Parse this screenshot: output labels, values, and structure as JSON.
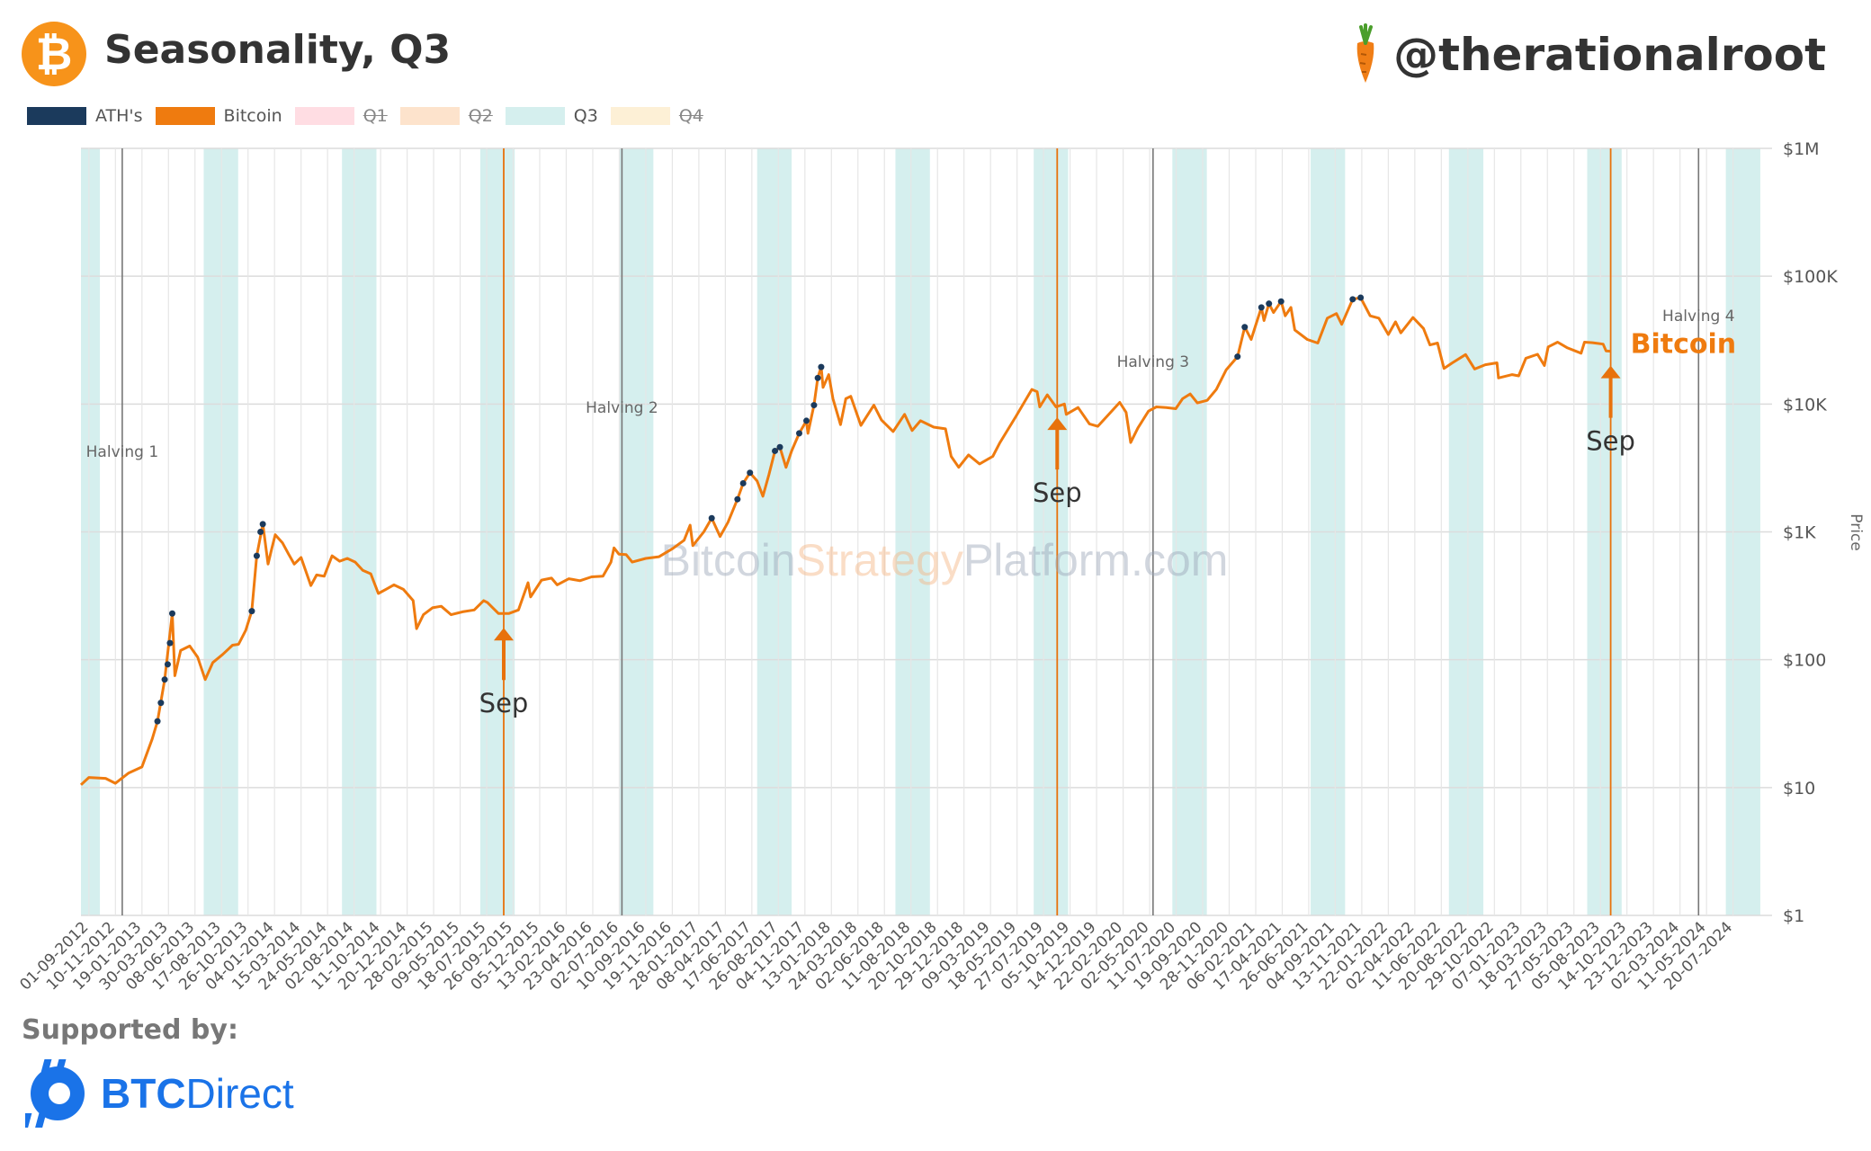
{
  "header": {
    "title": "Seasonality, Q3",
    "handle": "@therationalroot",
    "logo_glyph": "₿"
  },
  "legend": [
    {
      "label": "ATH's",
      "color": "#1b3a5c",
      "struck": false
    },
    {
      "label": "Bitcoin",
      "color": "#ef7b0f",
      "struck": false
    },
    {
      "label": "Q1",
      "color": "#ffdde3",
      "struck": true
    },
    {
      "label": "Q2",
      "color": "#fde3cc",
      "struck": true
    },
    {
      "label": "Q3",
      "color": "#d5efee",
      "struck": false
    },
    {
      "label": "Q4",
      "color": "#fdf0d6",
      "struck": true
    }
  ],
  "footer": {
    "supported_by": "Supported by:",
    "sponsor_prefix": "BTC",
    "sponsor_suffix": "Direct"
  },
  "colors": {
    "bitcoin": "#ef7b0f",
    "ath": "#1b3a5c",
    "q3_band": "#d5efee",
    "annotation": "#e8720c",
    "sponsor": "#1a73e8"
  },
  "chart_data": {
    "type": "line",
    "yscale": "log",
    "ylabel": "Price",
    "ylim": [
      1,
      1000000
    ],
    "xlim": [
      "2012-08-11",
      "2024-10-31"
    ],
    "y_ticks": [
      {
        "value": 1,
        "label": "$1"
      },
      {
        "value": 10,
        "label": "$10"
      },
      {
        "value": 100,
        "label": "$100"
      },
      {
        "value": 1000,
        "label": "$1K"
      },
      {
        "value": 10000,
        "label": "$10K"
      },
      {
        "value": 100000,
        "label": "$100K"
      },
      {
        "value": 1000000,
        "label": "$1M"
      }
    ],
    "x_ticks": [
      "01-09-2012",
      "10-11-2012",
      "19-01-2013",
      "30-03-2013",
      "08-06-2013",
      "17-08-2013",
      "26-10-2013",
      "04-01-2014",
      "15-03-2014",
      "24-05-2014",
      "02-08-2014",
      "11-10-2014",
      "20-12-2014",
      "28-02-2015",
      "09-05-2015",
      "18-07-2015",
      "26-09-2015",
      "05-12-2015",
      "13-02-2016",
      "23-04-2016",
      "02-07-2016",
      "10-09-2016",
      "19-11-2016",
      "28-01-2017",
      "08-04-2017",
      "17-06-2017",
      "26-08-2017",
      "04-11-2017",
      "13-01-2018",
      "24-03-2018",
      "02-06-2018",
      "11-08-2018",
      "20-10-2018",
      "29-12-2018",
      "09-03-2019",
      "18-05-2019",
      "27-07-2019",
      "05-10-2019",
      "14-12-2019",
      "22-02-2020",
      "02-05-2020",
      "11-07-2020",
      "19-09-2020",
      "28-11-2020",
      "06-02-2021",
      "17-04-2021",
      "26-06-2021",
      "04-09-2021",
      "13-11-2021",
      "22-01-2022",
      "02-04-2022",
      "11-06-2022",
      "20-08-2022",
      "29-10-2022",
      "07-01-2023",
      "18-03-2023",
      "27-05-2023",
      "05-08-2023",
      "14-10-2023",
      "23-12-2023",
      "02-03-2024",
      "11-05-2024",
      "20-07-2024"
    ],
    "q3_bands": [
      [
        "2012-08-11",
        "2012-09-30"
      ],
      [
        "2013-07-01",
        "2013-09-30"
      ],
      [
        "2014-07-01",
        "2014-09-30"
      ],
      [
        "2015-07-01",
        "2015-09-30"
      ],
      [
        "2016-07-01",
        "2016-09-30"
      ],
      [
        "2017-07-01",
        "2017-09-30"
      ],
      [
        "2018-07-01",
        "2018-09-30"
      ],
      [
        "2019-07-01",
        "2019-09-30"
      ],
      [
        "2020-07-01",
        "2020-09-30"
      ],
      [
        "2021-07-01",
        "2021-09-30"
      ],
      [
        "2022-07-01",
        "2022-09-30"
      ],
      [
        "2023-07-01",
        "2023-09-30"
      ],
      [
        "2024-07-01",
        "2024-09-30"
      ]
    ],
    "halvings": [
      {
        "label": "Halving 1",
        "date": "2012-11-28"
      },
      {
        "label": "Halving 2",
        "date": "2016-07-09"
      },
      {
        "label": "Halving 3",
        "date": "2020-05-11"
      },
      {
        "label": "Halving 4",
        "date": "2024-04-20"
      }
    ],
    "september_markers": [
      {
        "label": "Sep",
        "date": "2015-09-01",
        "price": 230
      },
      {
        "label": "Sep",
        "date": "2019-09-01",
        "price": 10200
      },
      {
        "label": "Sep",
        "date": "2023-09-01",
        "price": 25900
      }
    ],
    "series_label": "Bitcoin",
    "watermark": {
      "part1": "Bitcoin",
      "part2": "Strategy",
      "part3": "Platform.com"
    },
    "series": [
      {
        "name": "Bitcoin",
        "color": "#ef7b0f",
        "points": [
          [
            "2012-08-11",
            10.5
          ],
          [
            "2012-09-01",
            12
          ],
          [
            "2012-10-15",
            11.8
          ],
          [
            "2012-11-10",
            10.8
          ],
          [
            "2012-12-15",
            13
          ],
          [
            "2013-01-19",
            14.5
          ],
          [
            "2013-02-15",
            24
          ],
          [
            "2013-03-01",
            33
          ],
          [
            "2013-03-20",
            70
          ],
          [
            "2013-04-09",
            230
          ],
          [
            "2013-04-16",
            75
          ],
          [
            "2013-05-01",
            118
          ],
          [
            "2013-05-25",
            128
          ],
          [
            "2013-06-15",
            105
          ],
          [
            "2013-07-05",
            70
          ],
          [
            "2013-07-25",
            95
          ],
          [
            "2013-08-20",
            110
          ],
          [
            "2013-09-15",
            130
          ],
          [
            "2013-10-01",
            132
          ],
          [
            "2013-10-20",
            170
          ],
          [
            "2013-11-05",
            240
          ],
          [
            "2013-11-18",
            650
          ],
          [
            "2013-12-04",
            1150
          ],
          [
            "2013-12-18",
            560
          ],
          [
            "2013-12-28",
            750
          ],
          [
            "2014-01-06",
            950
          ],
          [
            "2014-01-25",
            820
          ],
          [
            "2014-02-10",
            670
          ],
          [
            "2014-02-25",
            560
          ],
          [
            "2014-03-15",
            630
          ],
          [
            "2014-04-10",
            380
          ],
          [
            "2014-04-25",
            460
          ],
          [
            "2014-05-15",
            450
          ],
          [
            "2014-06-05",
            650
          ],
          [
            "2014-06-25",
            590
          ],
          [
            "2014-07-15",
            620
          ],
          [
            "2014-08-05",
            580
          ],
          [
            "2014-08-25",
            500
          ],
          [
            "2014-09-15",
            470
          ],
          [
            "2014-10-05",
            330
          ],
          [
            "2014-10-25",
            355
          ],
          [
            "2014-11-15",
            385
          ],
          [
            "2014-12-10",
            355
          ],
          [
            "2015-01-05",
            290
          ],
          [
            "2015-01-14",
            175
          ],
          [
            "2015-02-01",
            225
          ],
          [
            "2015-02-25",
            255
          ],
          [
            "2015-03-20",
            262
          ],
          [
            "2015-04-15",
            225
          ],
          [
            "2015-05-15",
            237
          ],
          [
            "2015-06-15",
            245
          ],
          [
            "2015-07-10",
            290
          ],
          [
            "2015-07-20",
            280
          ],
          [
            "2015-08-18",
            230
          ],
          [
            "2015-09-15",
            230
          ],
          [
            "2015-10-10",
            245
          ],
          [
            "2015-11-04",
            400
          ],
          [
            "2015-11-11",
            310
          ],
          [
            "2015-12-10",
            420
          ],
          [
            "2016-01-05",
            435
          ],
          [
            "2016-01-20",
            385
          ],
          [
            "2016-02-20",
            430
          ],
          [
            "2016-03-20",
            415
          ],
          [
            "2016-04-20",
            445
          ],
          [
            "2016-05-20",
            450
          ],
          [
            "2016-06-10",
            580
          ],
          [
            "2016-06-18",
            750
          ],
          [
            "2016-07-01",
            670
          ],
          [
            "2016-07-20",
            665
          ],
          [
            "2016-08-05",
            580
          ],
          [
            "2016-09-10",
            620
          ],
          [
            "2016-10-15",
            640
          ],
          [
            "2016-11-20",
            740
          ],
          [
            "2016-12-20",
            860
          ],
          [
            "2017-01-05",
            1130
          ],
          [
            "2017-01-12",
            780
          ],
          [
            "2017-02-10",
            1000
          ],
          [
            "2017-03-03",
            1280
          ],
          [
            "2017-03-25",
            920
          ],
          [
            "2017-04-15",
            1190
          ],
          [
            "2017-05-10",
            1800
          ],
          [
            "2017-05-25",
            2400
          ],
          [
            "2017-06-12",
            2900
          ],
          [
            "2017-07-01",
            2500
          ],
          [
            "2017-07-16",
            1900
          ],
          [
            "2017-08-01",
            2800
          ],
          [
            "2017-08-17",
            4300
          ],
          [
            "2017-08-30",
            4600
          ],
          [
            "2017-09-15",
            3200
          ],
          [
            "2017-09-30",
            4300
          ],
          [
            "2017-10-20",
            5900
          ],
          [
            "2017-11-08",
            7400
          ],
          [
            "2017-11-12",
            5900
          ],
          [
            "2017-11-28",
            9800
          ],
          [
            "2017-12-08",
            16000
          ],
          [
            "2017-12-17",
            19500
          ],
          [
            "2017-12-22",
            13500
          ],
          [
            "2018-01-06",
            17000
          ],
          [
            "2018-01-17",
            11000
          ],
          [
            "2018-02-06",
            6900
          ],
          [
            "2018-02-20",
            11000
          ],
          [
            "2018-03-05",
            11500
          ],
          [
            "2018-04-01",
            6800
          ],
          [
            "2018-05-05",
            9800
          ],
          [
            "2018-05-25",
            7500
          ],
          [
            "2018-06-25",
            6100
          ],
          [
            "2018-07-25",
            8300
          ],
          [
            "2018-08-14",
            6200
          ],
          [
            "2018-09-05",
            7400
          ],
          [
            "2018-10-10",
            6600
          ],
          [
            "2018-11-10",
            6400
          ],
          [
            "2018-11-25",
            3900
          ],
          [
            "2018-12-15",
            3200
          ],
          [
            "2019-01-10",
            4000
          ],
          [
            "2019-02-08",
            3400
          ],
          [
            "2019-03-15",
            3900
          ],
          [
            "2019-04-03",
            5000
          ],
          [
            "2019-05-15",
            8000
          ],
          [
            "2019-06-26",
            13000
          ],
          [
            "2019-07-10",
            12500
          ],
          [
            "2019-07-17",
            9500
          ],
          [
            "2019-08-06",
            11800
          ],
          [
            "2019-08-29",
            9500
          ],
          [
            "2019-09-20",
            10000
          ],
          [
            "2019-09-25",
            8300
          ],
          [
            "2019-10-26",
            9400
          ],
          [
            "2019-11-25",
            7000
          ],
          [
            "2019-12-17",
            6700
          ],
          [
            "2020-01-10",
            8000
          ],
          [
            "2020-02-13",
            10300
          ],
          [
            "2020-03-01",
            8600
          ],
          [
            "2020-03-13",
            5000
          ],
          [
            "2020-04-01",
            6500
          ],
          [
            "2020-04-29",
            8800
          ],
          [
            "2020-05-20",
            9500
          ],
          [
            "2020-06-15",
            9400
          ],
          [
            "2020-07-10",
            9200
          ],
          [
            "2020-07-28",
            11000
          ],
          [
            "2020-08-17",
            12000
          ],
          [
            "2020-09-05",
            10200
          ],
          [
            "2020-10-01",
            10700
          ],
          [
            "2020-10-25",
            13000
          ],
          [
            "2020-11-20",
            18500
          ],
          [
            "2020-12-20",
            23500
          ],
          [
            "2021-01-08",
            40000
          ],
          [
            "2021-01-25",
            32000
          ],
          [
            "2021-02-21",
            57000
          ],
          [
            "2021-02-28",
            45000
          ],
          [
            "2021-03-13",
            61000
          ],
          [
            "2021-03-25",
            52000
          ],
          [
            "2021-04-14",
            63500
          ],
          [
            "2021-04-25",
            49000
          ],
          [
            "2021-05-10",
            57000
          ],
          [
            "2021-05-20",
            38000
          ],
          [
            "2021-06-22",
            32000
          ],
          [
            "2021-07-20",
            30000
          ],
          [
            "2021-08-14",
            47000
          ],
          [
            "2021-09-07",
            51000
          ],
          [
            "2021-09-21",
            42000
          ],
          [
            "2021-10-20",
            66000
          ],
          [
            "2021-11-10",
            68000
          ],
          [
            "2021-12-05",
            49000
          ],
          [
            "2021-12-28",
            47000
          ],
          [
            "2022-01-22",
            35000
          ],
          [
            "2022-02-10",
            44000
          ],
          [
            "2022-02-24",
            36000
          ],
          [
            "2022-03-28",
            47500
          ],
          [
            "2022-04-25",
            39000
          ],
          [
            "2022-05-12",
            29000
          ],
          [
            "2022-06-01",
            30000
          ],
          [
            "2022-06-18",
            19000
          ],
          [
            "2022-07-10",
            21000
          ],
          [
            "2022-08-14",
            24400
          ],
          [
            "2022-09-07",
            18800
          ],
          [
            "2022-10-05",
            20300
          ],
          [
            "2022-11-05",
            21000
          ],
          [
            "2022-11-09",
            16000
          ],
          [
            "2022-12-15",
            17000
          ],
          [
            "2023-01-01",
            16600
          ],
          [
            "2023-01-20",
            22800
          ],
          [
            "2023-02-20",
            24500
          ],
          [
            "2023-03-10",
            20000
          ],
          [
            "2023-03-20",
            28000
          ],
          [
            "2023-04-14",
            30500
          ],
          [
            "2023-05-10",
            27500
          ],
          [
            "2023-06-15",
            25000
          ],
          [
            "2023-06-24",
            30500
          ],
          [
            "2023-07-15",
            30200
          ],
          [
            "2023-08-12",
            29400
          ],
          [
            "2023-08-20",
            26000
          ],
          [
            "2023-09-01",
            25900
          ]
        ]
      },
      {
        "name": "ATH's",
        "color": "#1b3a5c",
        "points": [
          [
            "2013-03-01",
            33
          ],
          [
            "2013-03-10",
            46
          ],
          [
            "2013-03-20",
            70
          ],
          [
            "2013-03-28",
            92
          ],
          [
            "2013-04-03",
            135
          ],
          [
            "2013-04-09",
            230
          ],
          [
            "2013-11-05",
            240
          ],
          [
            "2013-11-18",
            650
          ],
          [
            "2013-11-28",
            1000
          ],
          [
            "2013-12-04",
            1150
          ],
          [
            "2017-03-03",
            1280
          ],
          [
            "2017-05-10",
            1800
          ],
          [
            "2017-05-25",
            2400
          ],
          [
            "2017-06-12",
            2900
          ],
          [
            "2017-08-17",
            4300
          ],
          [
            "2017-08-30",
            4600
          ],
          [
            "2017-10-20",
            5900
          ],
          [
            "2017-11-08",
            7400
          ],
          [
            "2017-11-28",
            9800
          ],
          [
            "2017-12-08",
            16000
          ],
          [
            "2017-12-17",
            19500
          ],
          [
            "2020-12-20",
            23500
          ],
          [
            "2021-01-08",
            40000
          ],
          [
            "2021-02-21",
            57000
          ],
          [
            "2021-03-13",
            61000
          ],
          [
            "2021-04-14",
            63500
          ],
          [
            "2021-10-20",
            66000
          ],
          [
            "2021-11-10",
            68000
          ]
        ]
      }
    ]
  }
}
